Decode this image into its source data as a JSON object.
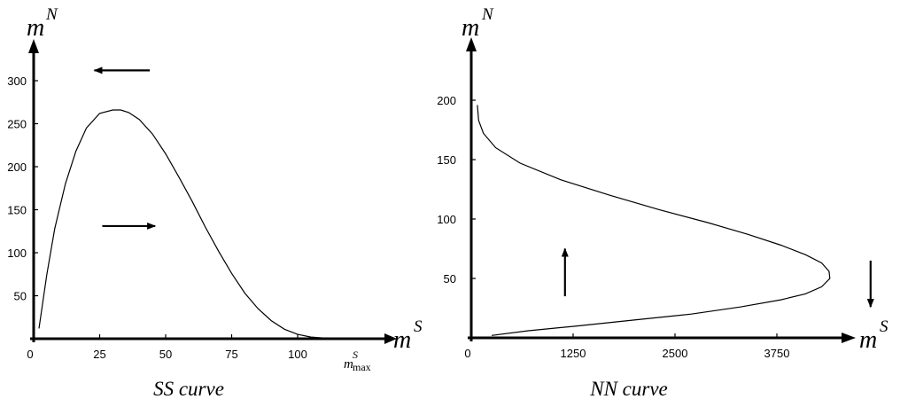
{
  "chart_data": [
    {
      "type": "line",
      "caption": "SS curve",
      "xlabel": {
        "base": "m",
        "sup": "S"
      },
      "ylabel": {
        "base": "m",
        "sup": "N"
      },
      "x_ticks": [
        "0",
        "25",
        "50",
        "75",
        "100"
      ],
      "x_end_label": {
        "base": "m",
        "sup": "S",
        "sub": "max"
      },
      "y_ticks": [
        "50",
        "100",
        "150",
        "200",
        "250",
        "300"
      ],
      "xlim": [
        0,
        122
      ],
      "ylim": [
        0,
        330
      ],
      "curve": {
        "x": [
          2,
          5,
          8,
          12,
          16,
          20,
          25,
          30,
          33,
          36,
          40,
          45,
          50,
          55,
          60,
          65,
          70,
          75,
          80,
          85,
          90,
          95,
          100,
          105,
          110,
          115,
          120
        ],
        "y": [
          12,
          75,
          128,
          180,
          218,
          245,
          262,
          266,
          266,
          263,
          255,
          238,
          215,
          188,
          160,
          130,
          102,
          76,
          53,
          35,
          21,
          11,
          5,
          2,
          0.8,
          0.2,
          0
        ]
      },
      "arrows": [
        {
          "direction": "left",
          "at_y": 312,
          "x_from": 44,
          "x_to": 23
        },
        {
          "direction": "right",
          "at_y": 131,
          "x_from": 26,
          "x_to": 46
        }
      ]
    },
    {
      "type": "line",
      "caption": "NN curve",
      "xlabel": {
        "base": "m",
        "sup": "S"
      },
      "ylabel": {
        "base": "m",
        "sup": "N"
      },
      "x_ticks": [
        "0",
        "1250",
        "2500",
        "3750"
      ],
      "y_ticks": [
        "50",
        "100",
        "150",
        "200"
      ],
      "xlim": [
        0,
        5800
      ],
      "ylim": [
        0,
        250
      ],
      "curve": {
        "x": [
          250,
          700,
          1300,
          2000,
          2700,
          3300,
          3800,
          4100,
          4300,
          4400,
          4390,
          4300,
          4100,
          3800,
          3400,
          2900,
          2300,
          1700,
          1100,
          600,
          300,
          150,
          90,
          75
        ],
        "y": [
          2,
          6,
          10,
          15,
          20,
          26,
          32,
          37,
          43,
          50,
          56,
          63,
          70,
          78,
          87,
          97,
          108,
          120,
          133,
          147,
          160,
          172,
          183,
          196
        ]
      },
      "arrows": [
        {
          "direction": "up",
          "at_x": 1150,
          "y_from": 35,
          "y_to": 75
        },
        {
          "direction": "down",
          "at_x": 4900,
          "y_from": 65,
          "y_to": 26
        }
      ]
    }
  ]
}
